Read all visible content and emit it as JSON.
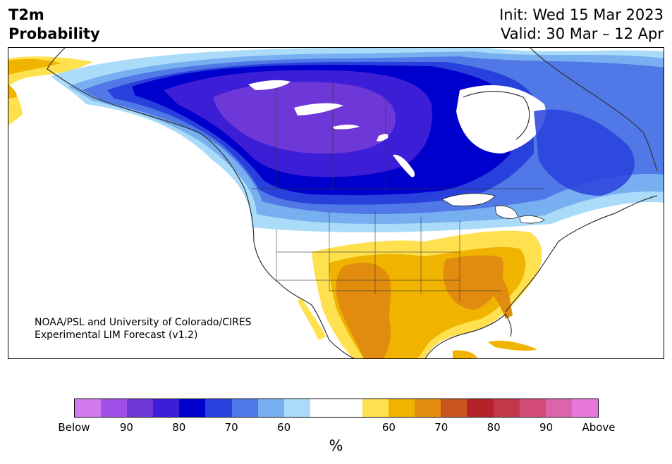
{
  "header": {
    "title_line1": "T2m",
    "title_line2": "Probability",
    "init_text": "Init: Wed 15 Mar 2023",
    "valid_text": "Valid: 30 Mar – 12 Apr"
  },
  "map": {
    "credit_line1": "NOAA/PSL and University of Colorado/CIRES",
    "credit_line2": "Experimental LIM Forecast (v1.2)"
  },
  "colorbar": {
    "colors": [
      "#d27aeb",
      "#a050e6",
      "#6e37d7",
      "#3c1ed7",
      "#0000cd",
      "#2841dc",
      "#5078e6",
      "#78aff0",
      "#aadcfa",
      "#ffffff",
      "#ffffff",
      "#ffe150",
      "#f0b400",
      "#e18c0f",
      "#c8551e",
      "#b42328",
      "#c3374b",
      "#d24b78",
      "#dc64aa",
      "#e678dc"
    ],
    "tick_labels": [
      "Below",
      "90",
      "80",
      "70",
      "60",
      "60",
      "70",
      "80",
      "90",
      "Above"
    ],
    "unit_label": "%"
  },
  "legend_colors": {
    "below_60": "#aadcfa",
    "below_70": "#78aff0",
    "below_80": "#5078e6",
    "below_90": "#2841dc",
    "below_deep": "#0000cd",
    "below_95": "#3c1ed7",
    "below_max": "#6e37d7",
    "above_60": "#ffe150",
    "above_70": "#f0b400",
    "above_80": "#e18c0f"
  }
}
